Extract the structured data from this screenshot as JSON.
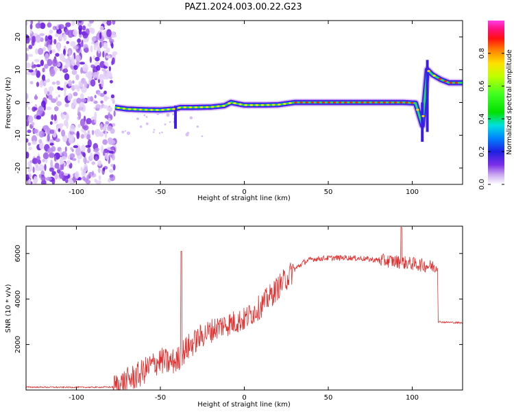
{
  "title": "PAZ1.2024.003.00.22.G23",
  "chart_data": [
    {
      "type": "heatmap",
      "xlabel": "Height of straight line (km)",
      "ylabel": "Frequency (Hz)",
      "xlim": [
        -130,
        130
      ],
      "ylim": [
        -25,
        25
      ],
      "x_ticks": [
        -100,
        -50,
        0,
        50,
        100
      ],
      "y_ticks": [
        -20,
        -10,
        0,
        10,
        20
      ],
      "colorbar": {
        "label": "Normalized spectral amplitude",
        "range": [
          0,
          1
        ],
        "ticks": [
          "0.0",
          "0.2",
          "0.4",
          "0.6",
          "0.8"
        ],
        "colormap": "gist_ncar-like (purple-blue-cyan-green-yellow-red-magenta)"
      },
      "noise_region_x": [
        -130,
        -77
      ],
      "ridge": [
        {
          "x": -77,
          "f": -1.5
        },
        {
          "x": -70,
          "f": -2.0
        },
        {
          "x": -60,
          "f": -2.2
        },
        {
          "x": -50,
          "f": -2.3
        },
        {
          "x": -42,
          "f": -2.0
        },
        {
          "x": -38,
          "f": -1.5
        },
        {
          "x": -30,
          "f": -1.5
        },
        {
          "x": -20,
          "f": -1.4
        },
        {
          "x": -12,
          "f": -1.0
        },
        {
          "x": -8,
          "f": 0.0
        },
        {
          "x": 0,
          "f": -0.8
        },
        {
          "x": 10,
          "f": -0.8
        },
        {
          "x": 20,
          "f": -0.7
        },
        {
          "x": 30,
          "f": 0.0
        },
        {
          "x": 45,
          "f": 0.0
        },
        {
          "x": 60,
          "f": 0.0
        },
        {
          "x": 75,
          "f": 0.0
        },
        {
          "x": 85,
          "f": 0.0
        },
        {
          "x": 95,
          "f": 0.0
        },
        {
          "x": 102,
          "f": -0.2
        },
        {
          "x": 106,
          "f": -7.0
        },
        {
          "x": 109,
          "f": 10.0
        },
        {
          "x": 112,
          "f": 8.5
        },
        {
          "x": 117,
          "f": 7.0
        },
        {
          "x": 122,
          "f": 6.0
        },
        {
          "x": 130,
          "f": 6.0
        }
      ]
    },
    {
      "type": "line",
      "xlabel": "Height of straight line (km)",
      "ylabel": "SNR (10 * v/v)",
      "xlim": [
        -130,
        130
      ],
      "ylim": [
        0,
        7200
      ],
      "x_ticks": [
        -100,
        -50,
        0,
        50,
        100
      ],
      "y_ticks": [
        2000,
        4000,
        6000
      ],
      "color": "#e03030",
      "profile": [
        {
          "x": -130,
          "y": 130
        },
        {
          "x": -110,
          "y": 120
        },
        {
          "x": -90,
          "y": 120
        },
        {
          "x": -78,
          "y": 130
        },
        {
          "x": -74,
          "y": 250
        },
        {
          "x": -70,
          "y": 400
        },
        {
          "x": -62,
          "y": 700
        },
        {
          "x": -55,
          "y": 1100
        },
        {
          "x": -50,
          "y": 1300
        },
        {
          "x": -45,
          "y": 1200
        },
        {
          "x": -40,
          "y": 1300
        },
        {
          "x": -36,
          "y": 1700
        },
        {
          "x": -30,
          "y": 2100
        },
        {
          "x": -25,
          "y": 2400
        },
        {
          "x": -20,
          "y": 2600
        },
        {
          "x": -15,
          "y": 2800
        },
        {
          "x": -10,
          "y": 2900
        },
        {
          "x": -5,
          "y": 3000
        },
        {
          "x": 0,
          "y": 3100
        },
        {
          "x": 5,
          "y": 3400
        },
        {
          "x": 10,
          "y": 3700
        },
        {
          "x": 15,
          "y": 4100
        },
        {
          "x": 20,
          "y": 4500
        },
        {
          "x": 25,
          "y": 4900
        },
        {
          "x": 30,
          "y": 5300
        },
        {
          "x": 35,
          "y": 5600
        },
        {
          "x": 40,
          "y": 5750
        },
        {
          "x": 50,
          "y": 5800
        },
        {
          "x": 60,
          "y": 5820
        },
        {
          "x": 70,
          "y": 5780
        },
        {
          "x": 80,
          "y": 5700
        },
        {
          "x": 90,
          "y": 5650
        },
        {
          "x": 100,
          "y": 5550
        },
        {
          "x": 110,
          "y": 5450
        },
        {
          "x": 115,
          "y": 5400
        },
        {
          "x": 115.5,
          "y": 3000
        },
        {
          "x": 120,
          "y": 2980
        },
        {
          "x": 130,
          "y": 2950
        }
      ],
      "spikes": [
        {
          "x": -37.5,
          "y": 6100
        },
        {
          "x": 93.5,
          "y": 7150
        }
      ]
    }
  ]
}
